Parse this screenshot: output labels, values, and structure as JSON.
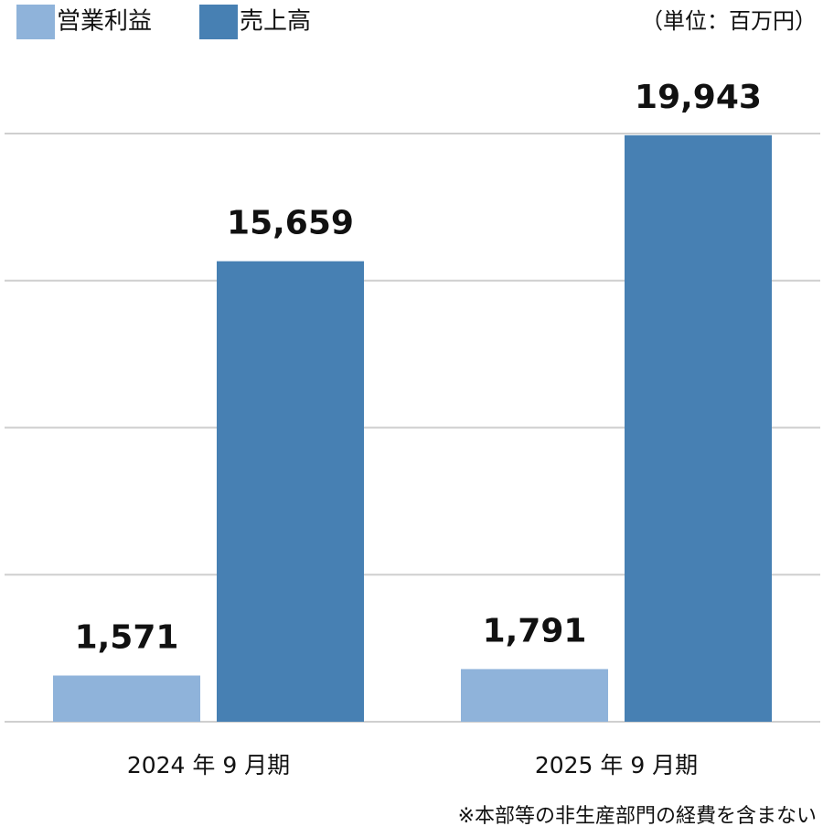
{
  "chart_data": {
    "type": "bar",
    "unit": "（単位：百万円）",
    "note": "※本部等の非生産部門の経費を含まない",
    "categories": [
      "2024 年 9 月期",
      "2025 年 9 月期"
    ],
    "series": [
      {
        "name": "営業利益",
        "color": "#8fb3da",
        "values": [
          1571,
          1791
        ],
        "value_labels": [
          "1,571",
          "1,791"
        ]
      },
      {
        "name": "売上高",
        "color": "#4780b3",
        "values": [
          15659,
          19943
        ],
        "value_labels": [
          "15,659",
          "19,943"
        ]
      }
    ],
    "ylim": [
      0,
      20000
    ],
    "yticks": [
      0,
      5000,
      10000,
      15000,
      20000
    ],
    "grid": true
  }
}
